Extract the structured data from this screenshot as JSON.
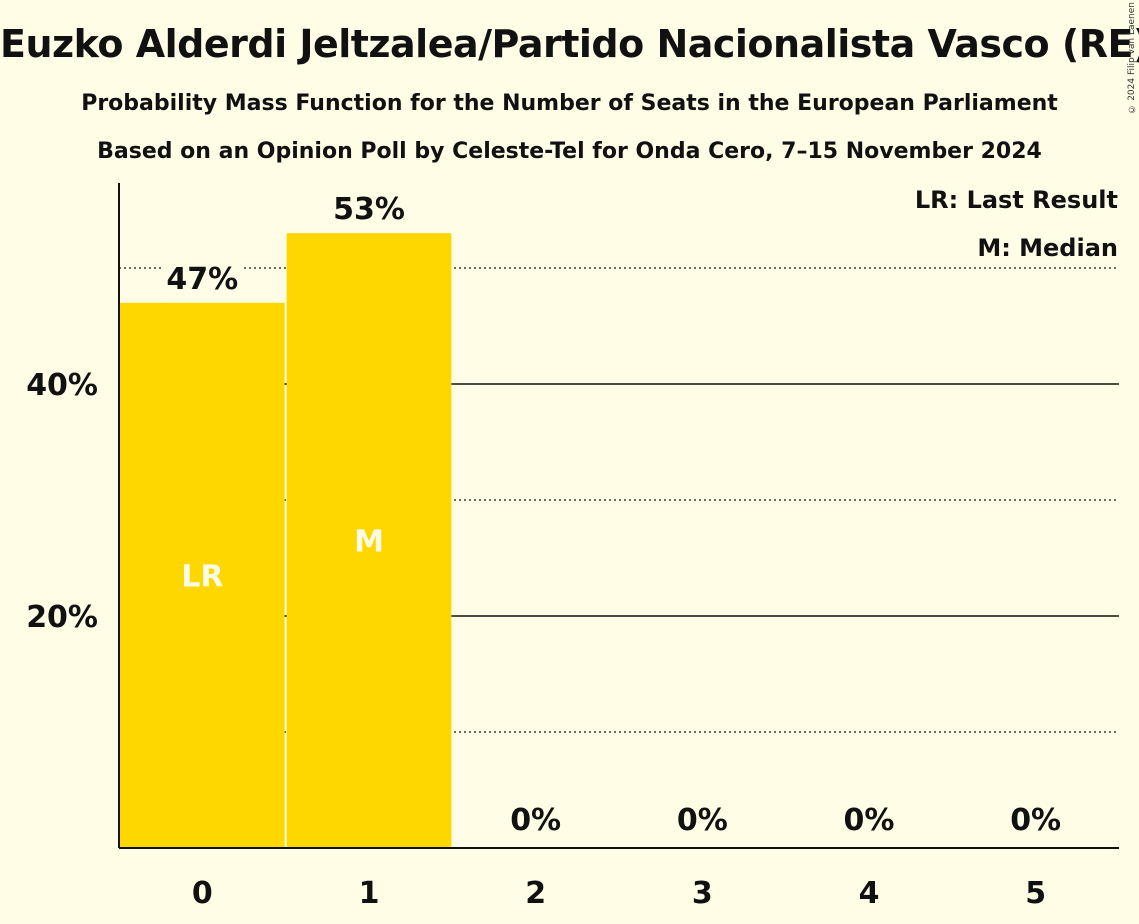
{
  "title": "Euzko Alderdi Jeltzalea/Partido Nacionalista Vasco (RE)",
  "subtitle1": "Probability Mass Function for the Number of Seats in the European Parliament",
  "subtitle2": "Based on an Opinion Poll by Celeste-Tel for Onda Cero, 7–15 November 2024",
  "copyright": "© 2024 Filip van Laenen",
  "legend": {
    "last_result": "LR: Last Result",
    "median": "M: Median"
  },
  "colors": {
    "background": "#FFFDE6",
    "bar": "#FFD700",
    "text": "#111111",
    "bar_label": "#FFFDE6"
  },
  "chart_data": {
    "type": "bar",
    "categories": [
      "0",
      "1",
      "2",
      "3",
      "4",
      "5"
    ],
    "values": [
      47,
      53,
      0,
      0,
      0,
      0
    ],
    "value_labels": [
      "47%",
      "53%",
      "0%",
      "0%",
      "0%",
      "0%"
    ],
    "bar_markers": [
      "LR",
      "M",
      "",
      "",
      "",
      ""
    ],
    "ylim": [
      0,
      57.3
    ],
    "yticks": [
      {
        "value": 20,
        "label": "20%"
      },
      {
        "value": 40,
        "label": "40%"
      }
    ],
    "gridlines_solid": [
      20,
      40
    ],
    "gridlines_dotted": [
      10,
      30,
      50
    ],
    "legend_position": "top-right"
  }
}
